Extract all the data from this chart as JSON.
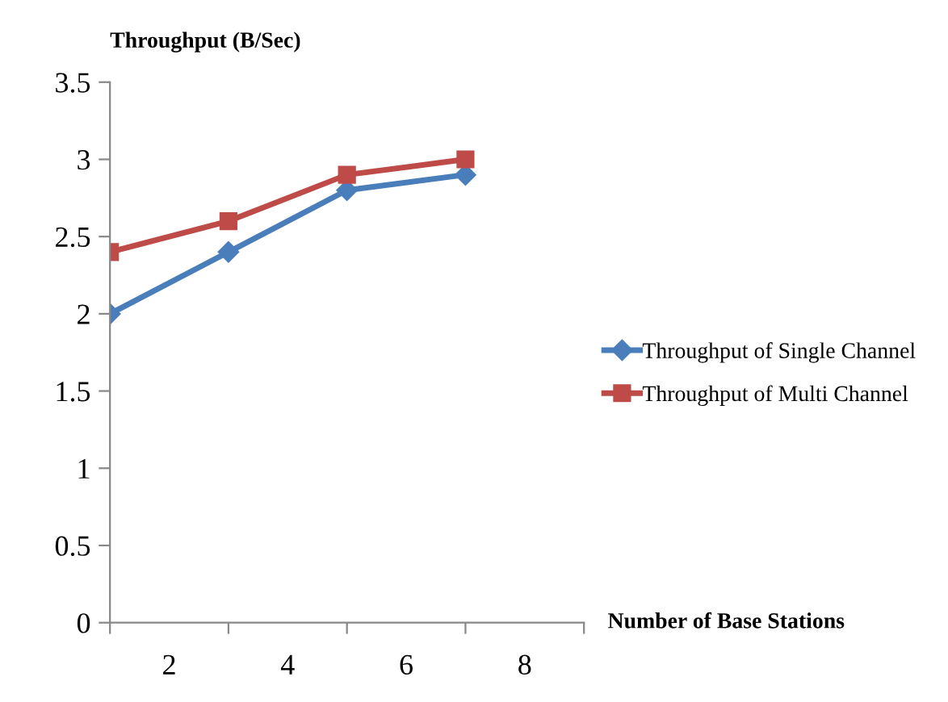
{
  "chart_data": {
    "type": "line",
    "ylabel": "Throughput (B/Sec)",
    "xlabel": "Number of Base Stations",
    "x": [
      1,
      3,
      5,
      7
    ],
    "xlim": [
      1,
      9
    ],
    "xticks": [
      {
        "value": 1,
        "label": null
      },
      {
        "value": 2,
        "label": "2"
      },
      {
        "value": 3,
        "label": null
      },
      {
        "value": 4,
        "label": "4"
      },
      {
        "value": 5,
        "label": null
      },
      {
        "value": 6,
        "label": "6"
      },
      {
        "value": 7,
        "label": null
      },
      {
        "value": 8,
        "label": "8"
      },
      {
        "value": 9,
        "label": null
      }
    ],
    "series": [
      {
        "name": "Throughput of Single Channel",
        "color": "#4a7ebb",
        "values": [
          2.0,
          2.4,
          2.8,
          2.9
        ],
        "marker": "diamond"
      },
      {
        "name": "Throughput of Multi Channel",
        "color": "#be4b48",
        "values": [
          2.4,
          2.6,
          2.9,
          3.0
        ],
        "marker": "square"
      }
    ],
    "ylim": [
      0,
      3.5
    ],
    "yticks": [
      0,
      0.5,
      1,
      1.5,
      2,
      2.5,
      3,
      3.5
    ],
    "grid": false,
    "legend": "right"
  }
}
